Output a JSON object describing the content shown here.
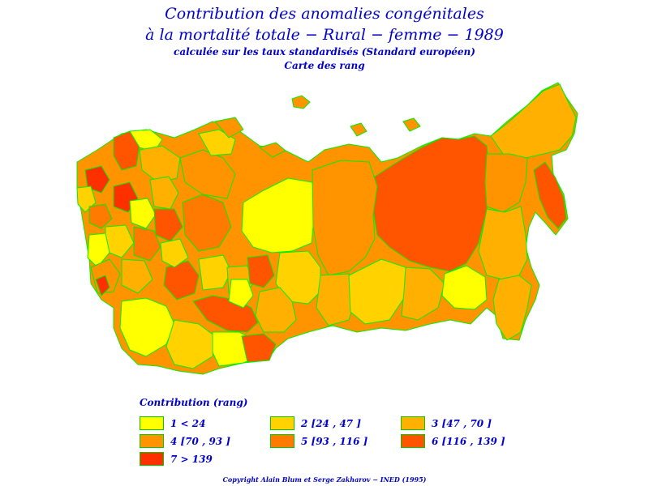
{
  "title": {
    "line1": "Contribution des anomalies congénitales",
    "line2": "à la mortalité totale  −  Rural  −  femme  −  1989",
    "line3": "calculée sur les taux standardisés (Standard européen)",
    "line4": "Carte des rang"
  },
  "map": {
    "region": "Russia / USSR administrative regions",
    "border_color": "#00ee00"
  },
  "legend": {
    "title": "Contribution  (rang)",
    "items": [
      {
        "label": "1  <  24",
        "color": "#ffff00"
      },
      {
        "label": "2 [24 ,  47 ]",
        "color": "#ffd200"
      },
      {
        "label": "3 [47 ,  70 ]",
        "color": "#ffb000"
      },
      {
        "label": "4 [70 ,  93 ]",
        "color": "#ff9400"
      },
      {
        "label": "5 [93 ,  116 ]",
        "color": "#ff7a00"
      },
      {
        "label": "6 [116 ,  139 ]",
        "color": "#ff5500"
      },
      {
        "label": "7  >  139",
        "color": "#ff3000"
      }
    ]
  },
  "copyright": "Copyright  Alain  Blum  et  Serge  Zakharov  −  INED (1995)"
}
